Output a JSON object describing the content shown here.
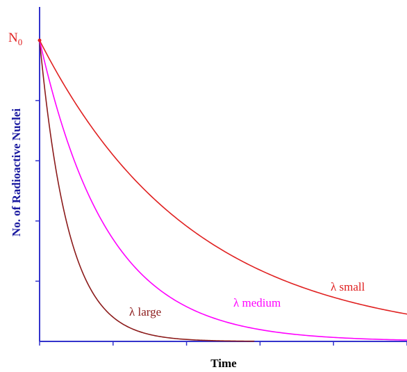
{
  "chart_data": {
    "type": "line",
    "title": "",
    "xlabel": "Time",
    "ylabel": "No. of Radioactive Nuclei",
    "y_start_label": "N",
    "y_start_label_sub": "0",
    "xlim": [
      0,
      12
    ],
    "ylim": [
      0,
      1
    ],
    "grid": false,
    "legend": "none",
    "series": [
      {
        "name": "λ large",
        "label_text": "λ large",
        "color": "#8b1a1a",
        "lambda": 1.05,
        "x": [
          0,
          0.5,
          1,
          1.5,
          2,
          2.5,
          3,
          4,
          5,
          6,
          7
        ],
        "y": [
          1.0,
          0.59,
          0.35,
          0.21,
          0.12,
          0.07,
          0.04,
          0.015,
          0.005,
          0.002,
          0.0
        ]
      },
      {
        "name": "λ medium",
        "label_text": "λ medium",
        "color": "#ff00ff",
        "lambda": 0.45,
        "x": [
          0,
          1,
          2,
          3,
          4,
          5,
          6,
          7,
          8,
          9,
          10,
          11,
          12
        ],
        "y": [
          1.0,
          0.64,
          0.41,
          0.26,
          0.17,
          0.105,
          0.067,
          0.043,
          0.027,
          0.017,
          0.011,
          0.007,
          0.0045
        ]
      },
      {
        "name": "λ small",
        "label_text": "λ small",
        "color": "#e02020",
        "lambda": 0.2,
        "x": [
          0,
          1,
          2,
          3,
          4,
          5,
          6,
          7,
          8,
          9,
          10,
          11,
          12
        ],
        "y": [
          1.0,
          0.82,
          0.67,
          0.55,
          0.45,
          0.37,
          0.3,
          0.25,
          0.2,
          0.165,
          0.135,
          0.11,
          0.09
        ]
      }
    ],
    "x_ticks": [
      0,
      2.4,
      4.8,
      7.2,
      9.6,
      12
    ],
    "y_ticks": [
      0.2,
      0.4,
      0.6,
      0.8
    ],
    "colors": {
      "axis": "#3333cc",
      "n0": "#e02020",
      "axis_title": "#000000",
      "ylabel": "#1a1aa0"
    }
  }
}
